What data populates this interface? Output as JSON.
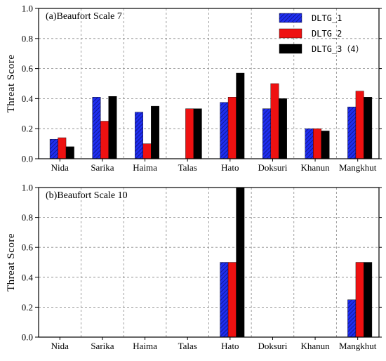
{
  "colors": {
    "series_1": "#1f2ef0",
    "series_1_hatch": "#0a1280",
    "series_2": "#ee1111",
    "series_3": "#000000"
  },
  "chart_data": [
    {
      "type": "bar",
      "title": "(a)Beaufort Scale 7",
      "ylabel": "Threat Score",
      "xlabel": "",
      "ylim": [
        0,
        1.0
      ],
      "yticks": [
        "0.0",
        "0.2",
        "0.4",
        "0.6",
        "0.8",
        "1.0"
      ],
      "grid": true,
      "legend": "top-right",
      "categories": [
        "Nida",
        "Sarika",
        "Haima",
        "Talas",
        "Hato",
        "Doksuri",
        "Khanun",
        "Mangkhut"
      ],
      "series": [
        {
          "name": "DLTG_1",
          "values": [
            0.13,
            0.41,
            0.31,
            0.0,
            0.375,
            0.333,
            0.2,
            0.345
          ]
        },
        {
          "name": "DLTG_2",
          "values": [
            0.14,
            0.25,
            0.1,
            0.333,
            0.41,
            0.5,
            0.2,
            0.45
          ]
        },
        {
          "name": "DLTG_3（4）",
          "values": [
            0.08,
            0.415,
            0.35,
            0.333,
            0.57,
            0.4,
            0.185,
            0.41
          ]
        }
      ]
    },
    {
      "type": "bar",
      "title": "(b)Beaufort Scale 10",
      "ylabel": "Threat Score",
      "xlabel": "",
      "ylim": [
        0,
        1.0
      ],
      "yticks": [
        "0.0",
        "0.2",
        "0.4",
        "0.6",
        "0.8",
        "1.0"
      ],
      "grid": true,
      "categories": [
        "Nida",
        "Sarika",
        "Haima",
        "Talas",
        "Hato",
        "Doksuri",
        "Khanun",
        "Mangkhut"
      ],
      "series": [
        {
          "name": "DLTG_1",
          "values": [
            0,
            0,
            0,
            0,
            0.5,
            0,
            0,
            0.25
          ]
        },
        {
          "name": "DLTG_2",
          "values": [
            0,
            0,
            0,
            0,
            0.5,
            0,
            0,
            0.5
          ]
        },
        {
          "name": "DLTG_3（4）",
          "values": [
            0,
            0,
            0,
            0,
            1.0,
            0,
            0,
            0.5
          ]
        }
      ]
    }
  ]
}
